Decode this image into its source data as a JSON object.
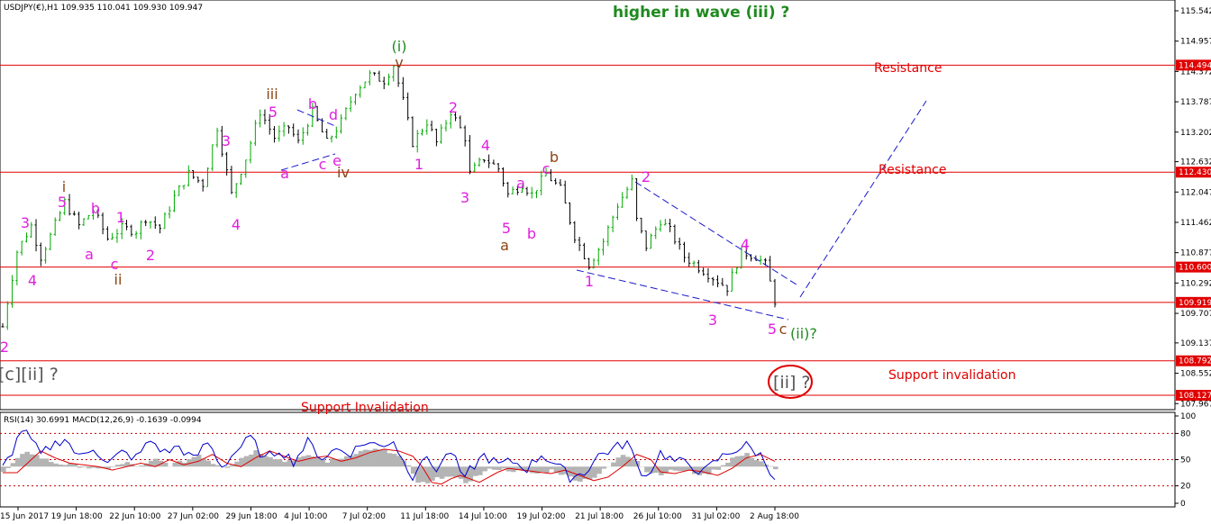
{
  "header": {
    "symbol": "USDJPY(€),H1",
    "ohlc": "109.935 110.041 109.930 109.947"
  },
  "colors": {
    "candle_up": "#00aa00",
    "candle_down": "#000000",
    "level_line": "#e00000",
    "trend_line": "#1a1acc",
    "wave_magenta": "#e020e0",
    "wave_brown": "#8b4513",
    "wave_green": "#1f8a1f",
    "rsi": "#0000cc",
    "macd_hist": "#b4b4b4",
    "macd_signal": "#e00000"
  },
  "annotations": {
    "top_note": "higher in wave (iii) ?",
    "resistance_1": "Resistance",
    "resistance_2": "Resistance",
    "support_invalidation": "Support invalidation",
    "support_invalidation_2": "Support Invalidation",
    "left_label": "[c][ii] ?",
    "right_label": "[ii] ?",
    "wave_ii_q": "(ii)?"
  },
  "indicator_header": {
    "rsi": "RSI(14) 30.6991",
    "macd": "MACD(12,26,9) -0.1639 -0.0994"
  },
  "chart_data": [
    {
      "type": "candlestick",
      "title": "USDJPY(€),H1",
      "y_ticks": [
        "115.542",
        "114.957",
        "114.372",
        "113.787",
        "113.202",
        "112.632",
        "112.047",
        "111.462",
        "110.877",
        "110.292",
        "109.707",
        "109.137",
        "108.552",
        "107.967"
      ],
      "ylim": [
        107.85,
        115.75
      ],
      "x_ticks": [
        "15 Jun 2017",
        "19 Jun 18:00",
        "22 Jun 10:00",
        "27 Jun 02:00",
        "29 Jun 18:00",
        "4 Jul 10:00",
        "7 Jul 02:00",
        "11 Jul 18:00",
        "14 Jul 10:00",
        "19 Jul 02:00",
        "21 Jul 18:00",
        "26 Jul 10:00",
        "31 Jul 02:00",
        "2 Aug 18:00"
      ],
      "levels": [
        {
          "value": 114.494,
          "label": "114.494"
        },
        {
          "value": 112.43,
          "label": "112.430"
        },
        {
          "value": 110.6,
          "label": "110.600"
        },
        {
          "value": 109.919,
          "label": "109.919"
        },
        {
          "value": 108.792,
          "label": "108.792"
        },
        {
          "value": 108.127,
          "label": "108.127"
        }
      ],
      "price_path": [
        [
          0,
          109.45
        ],
        [
          3,
          110.9
        ],
        [
          6,
          111.4
        ],
        [
          8,
          110.8
        ],
        [
          10,
          111.2
        ],
        [
          13,
          111.85
        ],
        [
          16,
          111.4
        ],
        [
          19,
          111.7
        ],
        [
          22,
          111.15
        ],
        [
          25,
          111.35
        ],
        [
          28,
          111.3
        ],
        [
          30,
          111.55
        ],
        [
          33,
          111.35
        ],
        [
          36,
          111.95
        ],
        [
          39,
          112.4
        ],
        [
          42,
          112.2
        ],
        [
          45,
          113.3
        ],
        [
          48,
          112.0
        ],
        [
          51,
          112.7
        ],
        [
          54,
          113.6
        ],
        [
          57,
          113.1
        ],
        [
          60,
          113.3
        ],
        [
          62,
          113.0
        ],
        [
          65,
          113.6
        ],
        [
          68,
          113.0
        ],
        [
          71,
          113.4
        ],
        [
          74,
          114.0
        ],
        [
          77,
          114.3
        ],
        [
          80,
          114.2
        ],
        [
          82,
          114.5
        ],
        [
          84,
          113.8
        ],
        [
          86,
          113.0
        ],
        [
          89,
          113.4
        ],
        [
          91,
          113.0
        ],
        [
          94,
          113.6
        ],
        [
          97,
          113.1
        ],
        [
          98,
          112.4
        ],
        [
          101,
          112.7
        ],
        [
          104,
          112.5
        ],
        [
          106,
          112.0
        ],
        [
          109,
          112.2
        ],
        [
          111,
          112.0
        ],
        [
          114,
          112.4
        ],
        [
          117,
          112.1
        ],
        [
          120,
          111.2
        ],
        [
          123,
          110.65
        ],
        [
          126,
          111.1
        ],
        [
          129,
          111.8
        ],
        [
          132,
          112.25
        ],
        [
          133,
          111.5
        ],
        [
          135,
          111.0
        ],
        [
          138,
          111.5
        ],
        [
          140,
          111.3
        ],
        [
          143,
          110.8
        ],
        [
          146,
          110.6
        ],
        [
          149,
          110.4
        ],
        [
          152,
          110.2
        ],
        [
          155,
          110.9
        ],
        [
          158,
          110.8
        ],
        [
          160,
          110.65
        ],
        [
          162,
          109.95
        ]
      ]
    },
    {
      "type": "line",
      "title": "RSI / MACD",
      "y_ticks": [
        "100",
        "80",
        "50",
        "20",
        "0"
      ],
      "ylim": [
        0,
        100
      ],
      "levels": [
        80,
        50,
        20
      ],
      "rsi_path": [
        [
          0,
          40
        ],
        [
          2,
          60
        ],
        [
          4,
          85
        ],
        [
          6,
          72
        ],
        [
          8,
          55
        ],
        [
          10,
          65
        ],
        [
          13,
          75
        ],
        [
          16,
          52
        ],
        [
          19,
          65
        ],
        [
          22,
          45
        ],
        [
          25,
          58
        ],
        [
          28,
          52
        ],
        [
          31,
          72
        ],
        [
          34,
          58
        ],
        [
          37,
          65
        ],
        [
          40,
          50
        ],
        [
          43,
          70
        ],
        [
          46,
          42
        ],
        [
          49,
          60
        ],
        [
          52,
          75
        ],
        [
          55,
          50
        ],
        [
          58,
          62
        ],
        [
          61,
          48
        ],
        [
          64,
          70
        ],
        [
          67,
          52
        ],
        [
          70,
          62
        ],
        [
          73,
          58
        ],
        [
          76,
          70
        ],
        [
          79,
          66
        ],
        [
          82,
          72
        ],
        [
          84,
          48
        ],
        [
          86,
          32
        ],
        [
          88,
          52
        ],
        [
          91,
          40
        ],
        [
          94,
          60
        ],
        [
          97,
          25
        ],
        [
          98,
          38
        ],
        [
          101,
          55
        ],
        [
          104,
          44
        ],
        [
          107,
          48
        ],
        [
          110,
          40
        ],
        [
          113,
          56
        ],
        [
          116,
          45
        ],
        [
          119,
          30
        ],
        [
          122,
          35
        ],
        [
          125,
          55
        ],
        [
          128,
          62
        ],
        [
          131,
          70
        ],
        [
          133,
          45
        ],
        [
          135,
          30
        ],
        [
          138,
          58
        ],
        [
          141,
          48
        ],
        [
          144,
          45
        ],
        [
          147,
          35
        ],
        [
          150,
          50
        ],
        [
          153,
          60
        ],
        [
          156,
          66
        ],
        [
          159,
          55
        ],
        [
          162,
          30
        ]
      ],
      "macd_hist_path": [
        [
          0,
          35
        ],
        [
          3,
          50
        ],
        [
          5,
          60
        ],
        [
          8,
          52
        ],
        [
          11,
          46
        ],
        [
          14,
          44
        ],
        [
          17,
          42
        ],
        [
          20,
          38
        ],
        [
          23,
          42
        ],
        [
          26,
          46
        ],
        [
          29,
          42
        ],
        [
          32,
          50
        ],
        [
          35,
          44
        ],
        [
          38,
          48
        ],
        [
          41,
          56
        ],
        [
          44,
          46
        ],
        [
          47,
          42
        ],
        [
          50,
          52
        ],
        [
          53,
          60
        ],
        [
          56,
          54
        ],
        [
          59,
          48
        ],
        [
          62,
          52
        ],
        [
          65,
          54
        ],
        [
          68,
          48
        ],
        [
          71,
          52
        ],
        [
          74,
          58
        ],
        [
          77,
          62
        ],
        [
          80,
          60
        ],
        [
          83,
          54
        ],
        [
          85,
          42
        ],
        [
          87,
          24
        ],
        [
          89,
          22
        ],
        [
          91,
          28
        ],
        [
          93,
          32
        ],
        [
          95,
          28
        ],
        [
          97,
          24
        ],
        [
          99,
          30
        ],
        [
          101,
          36
        ],
        [
          103,
          40
        ],
        [
          106,
          38
        ],
        [
          109,
          36
        ],
        [
          112,
          34
        ],
        [
          115,
          38
        ],
        [
          118,
          32
        ],
        [
          121,
          26
        ],
        [
          124,
          30
        ],
        [
          127,
          42
        ],
        [
          130,
          56
        ],
        [
          133,
          50
        ],
        [
          135,
          36
        ],
        [
          138,
          34
        ],
        [
          141,
          38
        ],
        [
          144,
          36
        ],
        [
          147,
          32
        ],
        [
          150,
          40
        ],
        [
          153,
          52
        ],
        [
          156,
          56
        ],
        [
          159,
          48
        ],
        [
          162,
          38
        ]
      ]
    }
  ],
  "waves": [
    {
      "t": "(i)",
      "x": 443,
      "y": 57,
      "c": "green"
    },
    {
      "t": "v",
      "x": 443,
      "y": 75,
      "c": "brown"
    },
    {
      "t": "iii",
      "x": 302,
      "y": 110,
      "c": "brown"
    },
    {
      "t": "5",
      "x": 303,
      "y": 130,
      "c": "magenta"
    },
    {
      "t": "b",
      "x": 347,
      "y": 121,
      "c": "magenta"
    },
    {
      "t": "d",
      "x": 370,
      "y": 133,
      "c": "magenta"
    },
    {
      "t": "c",
      "x": 358,
      "y": 188,
      "c": "magenta"
    },
    {
      "t": "e",
      "x": 374,
      "y": 184,
      "c": "magenta"
    },
    {
      "t": "iv",
      "x": 381,
      "y": 197,
      "c": "brown"
    },
    {
      "t": "a",
      "x": 316,
      "y": 198,
      "c": "magenta"
    },
    {
      "t": "3",
      "x": 251,
      "y": 162,
      "c": "magenta"
    },
    {
      "t": "4",
      "x": 262,
      "y": 255,
      "c": "magenta"
    },
    {
      "t": "2",
      "x": 503,
      "y": 125,
      "c": "magenta"
    },
    {
      "t": "1",
      "x": 465,
      "y": 188,
      "c": "magenta"
    },
    {
      "t": "4",
      "x": 539,
      "y": 167,
      "c": "magenta"
    },
    {
      "t": "3",
      "x": 516,
      "y": 225,
      "c": "magenta"
    },
    {
      "t": "c",
      "x": 606,
      "y": 193,
      "c": "magenta"
    },
    {
      "t": "b",
      "x": 615,
      "y": 180,
      "c": "brown"
    },
    {
      "t": "a",
      "x": 578,
      "y": 209,
      "c": "magenta"
    },
    {
      "t": "5",
      "x": 562,
      "y": 259,
      "c": "magenta"
    },
    {
      "t": "b",
      "x": 590,
      "y": 265,
      "c": "magenta"
    },
    {
      "t": "a",
      "x": 560,
      "y": 278,
      "c": "brown"
    },
    {
      "t": "2",
      "x": 717,
      "y": 202,
      "c": "magenta"
    },
    {
      "t": "1",
      "x": 654,
      "y": 318,
      "c": "magenta"
    },
    {
      "t": "4",
      "x": 827,
      "y": 277,
      "c": "magenta"
    },
    {
      "t": "3",
      "x": 791,
      "y": 361,
      "c": "magenta"
    },
    {
      "t": "5",
      "x": 857,
      "y": 371,
      "c": "magenta"
    },
    {
      "t": "c",
      "x": 869,
      "y": 371,
      "c": "brown"
    },
    {
      "t": "i",
      "x": 71,
      "y": 213,
      "c": "brown"
    },
    {
      "t": "5",
      "x": 69,
      "y": 230,
      "c": "magenta"
    },
    {
      "t": "3",
      "x": 28,
      "y": 253,
      "c": "magenta"
    },
    {
      "t": "b",
      "x": 106,
      "y": 237,
      "c": "magenta"
    },
    {
      "t": "1",
      "x": 134,
      "y": 247,
      "c": "magenta"
    },
    {
      "t": "a",
      "x": 99,
      "y": 288,
      "c": "magenta"
    },
    {
      "t": "c",
      "x": 127,
      "y": 299,
      "c": "magenta"
    },
    {
      "t": "ii",
      "x": 131,
      "y": 316,
      "c": "brown"
    },
    {
      "t": "2",
      "x": 167,
      "y": 289,
      "c": "magenta"
    },
    {
      "t": "4",
      "x": 36,
      "y": 317,
      "c": "magenta"
    },
    {
      "t": "2",
      "x": 5,
      "y": 391,
      "c": "magenta"
    }
  ]
}
